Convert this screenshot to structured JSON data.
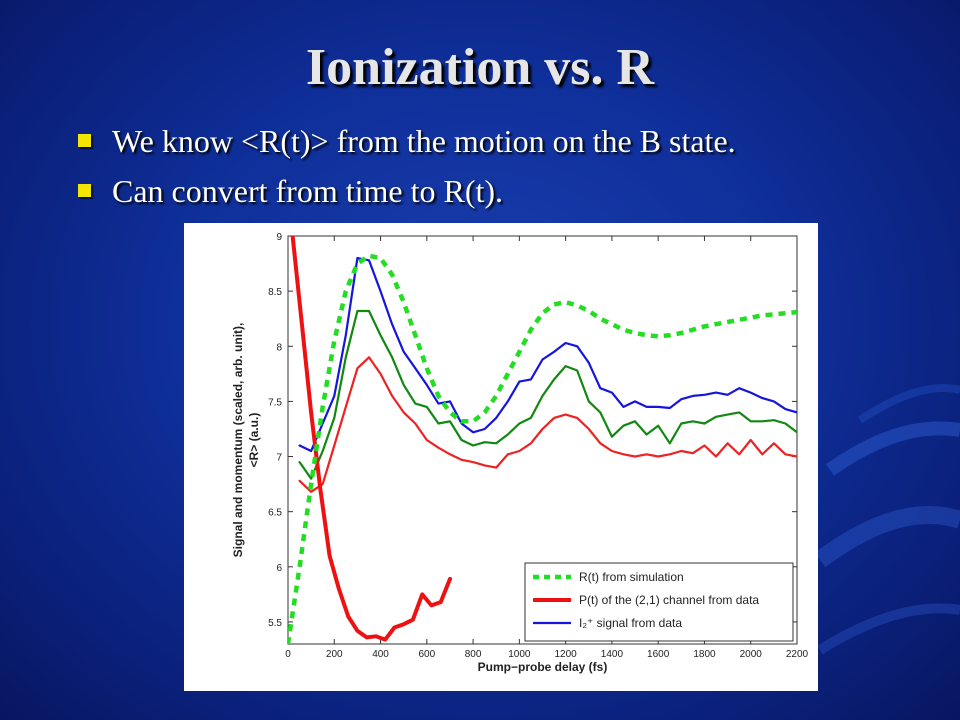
{
  "slide": {
    "title": "Ionization vs. R",
    "bullets": [
      "We know <R(t)> from the motion on the B state.",
      "Can convert from time to R(t)."
    ]
  },
  "colors": {
    "background": "#0f2f9a",
    "title_text": "#e6e6e6",
    "bullet_text": "#ffffff",
    "bullet_marker": "#f2e600"
  },
  "chart_data": {
    "type": "line",
    "xlabel": "Pump−probe delay (fs)",
    "ylabel_lines": [
      "Signal and momentum (scaled, arb. unit),",
      "<R> (a.u.)"
    ],
    "xlim": [
      0,
      2200
    ],
    "ylim": [
      5.3,
      9
    ],
    "xticks": [
      0,
      200,
      400,
      600,
      800,
      1000,
      1200,
      1400,
      1600,
      1800,
      2000,
      2200
    ],
    "yticks": [
      5.5,
      6,
      6.5,
      7,
      7.5,
      8,
      8.5,
      9
    ],
    "grid": false,
    "legend_position": "bottom-right",
    "series": [
      {
        "name": "R(t) from simulation",
        "color": "#22dd22",
        "style": "dashed",
        "x": [
          0,
          50,
          100,
          150,
          200,
          250,
          300,
          350,
          400,
          450,
          500,
          550,
          600,
          650,
          700,
          750,
          800,
          850,
          900,
          950,
          1000,
          1050,
          1100,
          1150,
          1200,
          1250,
          1300,
          1350,
          1400,
          1450,
          1500,
          1550,
          1600,
          1650,
          1700,
          1750,
          1800,
          1850,
          1900,
          1950,
          2000,
          2050,
          2100,
          2150,
          2200
        ],
        "y": [
          5.3,
          6.0,
          6.75,
          7.45,
          8.05,
          8.5,
          8.75,
          8.82,
          8.8,
          8.65,
          8.4,
          8.1,
          7.8,
          7.55,
          7.4,
          7.32,
          7.32,
          7.4,
          7.55,
          7.75,
          7.95,
          8.15,
          8.3,
          8.38,
          8.4,
          8.37,
          8.32,
          8.25,
          8.2,
          8.15,
          8.12,
          8.1,
          8.09,
          8.1,
          8.12,
          8.15,
          8.18,
          8.2,
          8.22,
          8.24,
          8.26,
          8.28,
          8.29,
          8.3,
          8.31
        ]
      },
      {
        "name": "P(t) of the (2,1) channel from data",
        "color": "#ee1111",
        "style": "solid-thick",
        "x": [
          20,
          60,
          100,
          140,
          180,
          220,
          260,
          300,
          340,
          380,
          420,
          460,
          500,
          540,
          580,
          620,
          660,
          700
        ],
        "y": [
          9.0,
          8.2,
          7.4,
          6.7,
          6.1,
          5.8,
          5.55,
          5.42,
          5.36,
          5.37,
          5.34,
          5.45,
          5.48,
          5.52,
          5.75,
          5.65,
          5.68,
          5.89
        ]
      },
      {
        "name": "I₂⁺ signal from data",
        "color": "#1515e0",
        "style": "solid",
        "x": [
          50,
          100,
          150,
          200,
          250,
          300,
          350,
          400,
          450,
          500,
          550,
          600,
          650,
          700,
          750,
          800,
          850,
          900,
          950,
          1000,
          1050,
          1100,
          1150,
          1200,
          1250,
          1300,
          1350,
          1400,
          1450,
          1500,
          1550,
          1600,
          1650,
          1700,
          1750,
          1800,
          1850,
          1900,
          1950,
          2000,
          2050,
          2100,
          2150,
          2200
        ],
        "y": [
          7.1,
          7.05,
          7.3,
          7.55,
          8.1,
          8.8,
          8.78,
          8.5,
          8.2,
          7.95,
          7.8,
          7.65,
          7.48,
          7.5,
          7.3,
          7.22,
          7.25,
          7.35,
          7.5,
          7.68,
          7.7,
          7.88,
          7.95,
          8.03,
          8.0,
          7.85,
          7.62,
          7.58,
          7.45,
          7.5,
          7.45,
          7.45,
          7.44,
          7.52,
          7.55,
          7.56,
          7.58,
          7.56,
          7.62,
          7.58,
          7.53,
          7.5,
          7.43,
          7.4
        ]
      },
      {
        "name": "green-data-trace",
        "color": "#118811",
        "style": "solid",
        "x": [
          50,
          100,
          150,
          200,
          250,
          300,
          350,
          400,
          450,
          500,
          550,
          600,
          650,
          700,
          750,
          800,
          850,
          900,
          950,
          1000,
          1050,
          1100,
          1150,
          1200,
          1250,
          1300,
          1350,
          1400,
          1450,
          1500,
          1550,
          1600,
          1650,
          1700,
          1750,
          1800,
          1850,
          1900,
          1950,
          2000,
          2050,
          2100,
          2150,
          2200
        ],
        "y": [
          6.95,
          6.8,
          7.05,
          7.35,
          7.9,
          8.32,
          8.32,
          8.1,
          7.9,
          7.65,
          7.48,
          7.45,
          7.3,
          7.32,
          7.15,
          7.1,
          7.13,
          7.12,
          7.2,
          7.3,
          7.35,
          7.55,
          7.7,
          7.82,
          7.78,
          7.5,
          7.4,
          7.18,
          7.28,
          7.32,
          7.2,
          7.28,
          7.12,
          7.3,
          7.32,
          7.3,
          7.36,
          7.38,
          7.4,
          7.32,
          7.32,
          7.33,
          7.3,
          7.22
        ]
      },
      {
        "name": "red-thin-data-trace",
        "color": "#ee2222",
        "style": "solid",
        "x": [
          50,
          100,
          150,
          200,
          250,
          300,
          350,
          400,
          450,
          500,
          550,
          600,
          650,
          700,
          750,
          800,
          850,
          900,
          950,
          1000,
          1050,
          1100,
          1150,
          1200,
          1250,
          1300,
          1350,
          1400,
          1450,
          1500,
          1550,
          1600,
          1650,
          1700,
          1750,
          1800,
          1850,
          1900,
          1950,
          2000,
          2050,
          2100,
          2150,
          2200
        ],
        "y": [
          6.78,
          6.68,
          6.75,
          7.1,
          7.45,
          7.8,
          7.9,
          7.75,
          7.55,
          7.4,
          7.3,
          7.15,
          7.08,
          7.02,
          6.97,
          6.95,
          6.92,
          6.9,
          7.02,
          7.05,
          7.12,
          7.25,
          7.35,
          7.38,
          7.35,
          7.25,
          7.12,
          7.05,
          7.02,
          7.0,
          7.02,
          7.0,
          7.02,
          7.05,
          7.03,
          7.1,
          7.0,
          7.12,
          7.02,
          7.15,
          7.02,
          7.12,
          7.02,
          7.0
        ]
      }
    ],
    "legend_entries": [
      "R(t) from simulation",
      "P(t) of the (2,1) channel from data",
      "I₂⁺ signal from data"
    ]
  }
}
